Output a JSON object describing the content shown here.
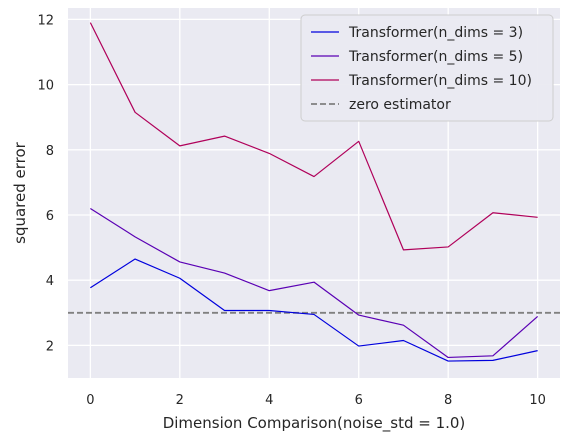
{
  "chart_data": {
    "type": "line",
    "title": "",
    "xlabel": "Dimension Comparison(noise_std = 1.0)",
    "ylabel": "squared error",
    "xlim": [
      -0.5,
      10.5
    ],
    "ylim": [
      1.0,
      12.35
    ],
    "xticks": [
      0,
      2,
      4,
      6,
      8,
      10
    ],
    "yticks": [
      2,
      4,
      6,
      8,
      10,
      12
    ],
    "grid": true,
    "legend_position": "top-right",
    "x": [
      0,
      1,
      2,
      3,
      4,
      5,
      6,
      7,
      8,
      9,
      10
    ],
    "series": [
      {
        "name": "Transformer(n_dims = 3)",
        "color": "#0000dd",
        "style": "solid",
        "values": [
          3.77,
          4.65,
          4.06,
          3.07,
          3.07,
          2.95,
          1.98,
          2.15,
          1.52,
          1.54,
          1.84
        ]
      },
      {
        "name": "Transformer(n_dims = 5)",
        "color": "#5a00b4",
        "style": "solid",
        "values": [
          6.2,
          5.33,
          4.56,
          4.22,
          3.68,
          3.94,
          2.93,
          2.62,
          1.63,
          1.68,
          2.89
        ]
      },
      {
        "name": "Transformer(n_dims = 10)",
        "color": "#b0005a",
        "style": "solid",
        "values": [
          11.9,
          9.15,
          8.12,
          8.42,
          7.89,
          7.18,
          8.26,
          4.93,
          5.02,
          6.07,
          5.93
        ]
      }
    ],
    "reference_lines": [
      {
        "name": "zero estimator",
        "color": "#808080",
        "style": "dashed",
        "y": 3.0
      }
    ]
  }
}
